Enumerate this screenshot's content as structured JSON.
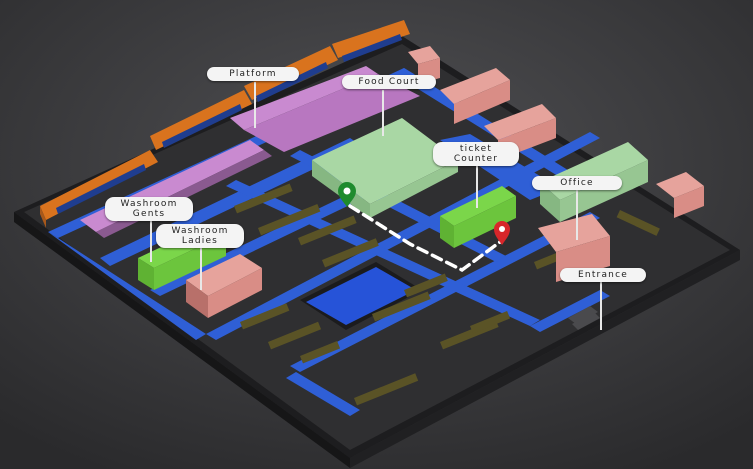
{
  "labels": {
    "platform": "Platform",
    "food_court": "Food Court",
    "ticket_counter_1": "ticket",
    "ticket_counter_2": "Counter",
    "office": "Office",
    "washroom_gents_1": "Washroom",
    "washroom_gents_2": "Gents",
    "washroom_ladies_1": "Washroom",
    "washroom_ladies_2": "Ladies",
    "entrance": "Entrance"
  },
  "colors": {
    "base": "#2e2e30",
    "road": "#2f5fd6",
    "train": "#d9731e",
    "canopy": "#c98ad0",
    "food_court_roof": "#a9d7a4",
    "washroom": "#7bd64a",
    "brick": "#d98d86",
    "water": "#2653d8",
    "route": "#ffffff",
    "pin_start": "#1f8b2e",
    "pin_end": "#d8262a"
  },
  "icons": {
    "start": "location-pin-icon",
    "end": "location-pin-icon"
  }
}
